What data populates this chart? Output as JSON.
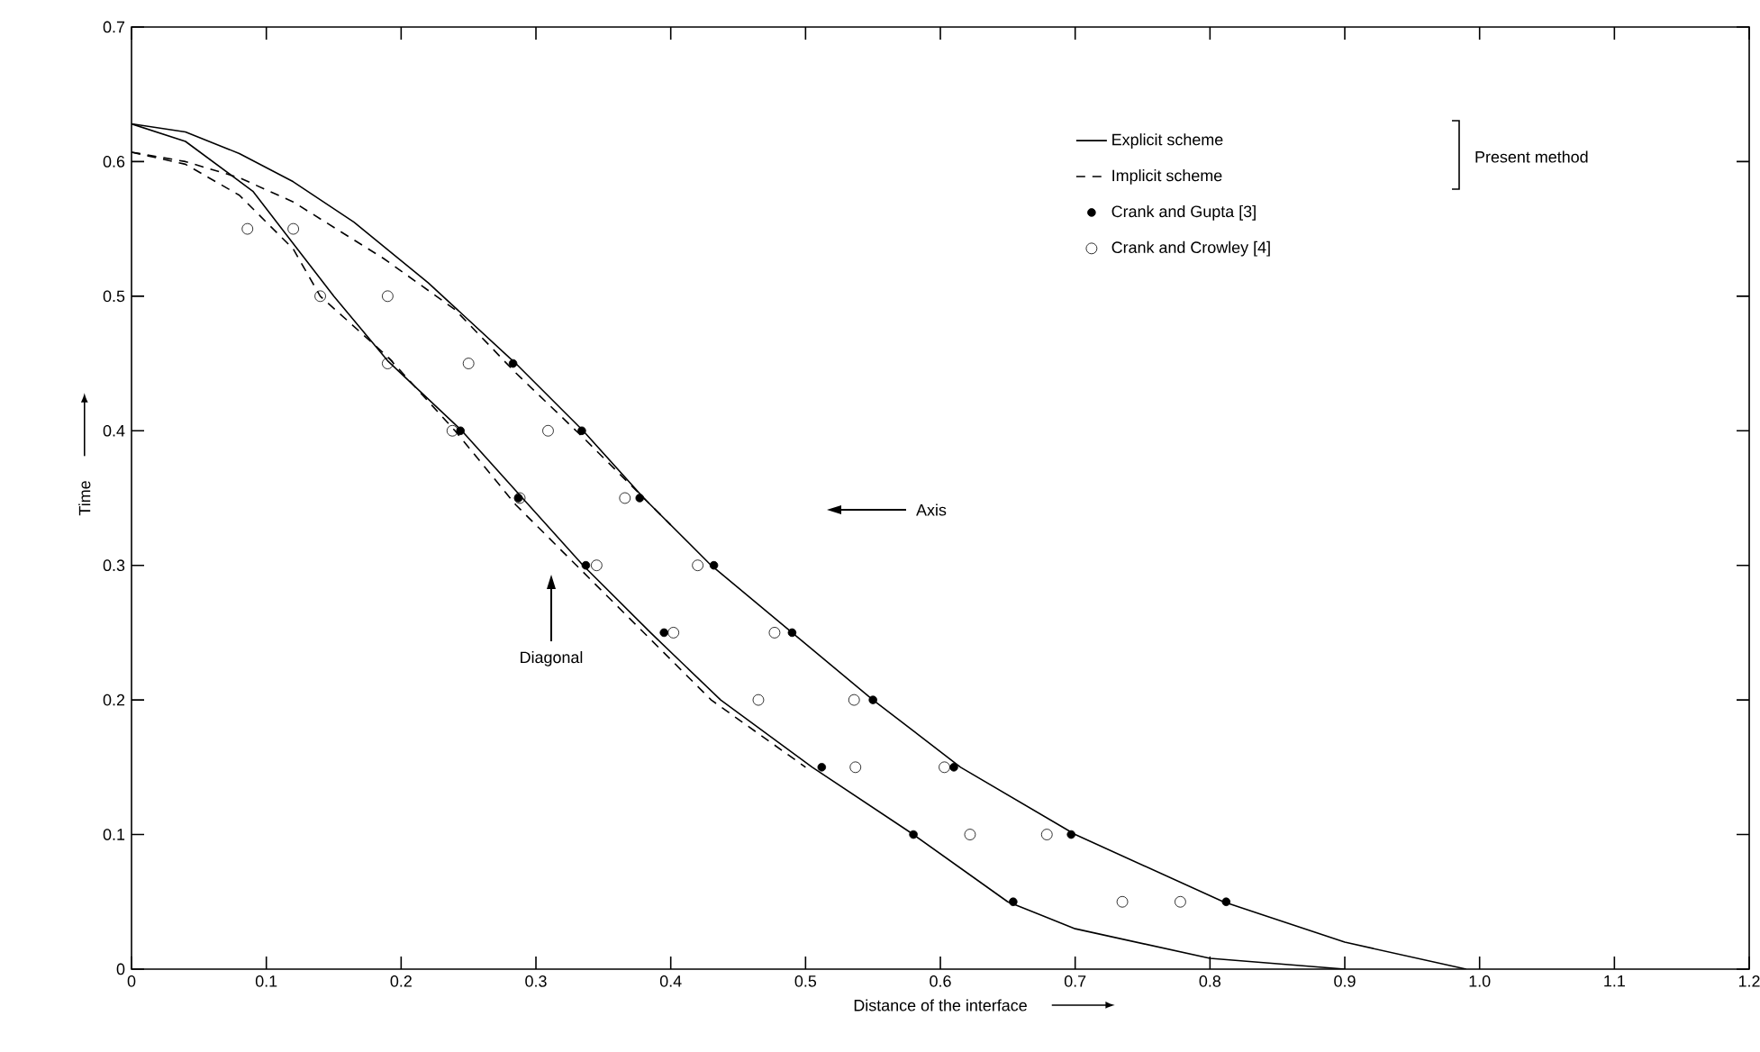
{
  "chart_data": {
    "type": "line",
    "xlabel": "Distance of the interface",
    "ylabel": "Time",
    "xlim": [
      0,
      1.2
    ],
    "ylim": [
      0,
      0.7
    ],
    "xticks": [
      0,
      0.1,
      0.2,
      0.3,
      0.4,
      0.5,
      0.6,
      0.7,
      0.8,
      0.9,
      {
        "value": 1.0,
        "label": "1.0"
      },
      1.1,
      1.2
    ],
    "yticks": [
      0,
      0.1,
      0.2,
      0.3,
      0.4,
      0.5,
      0.6,
      0.7
    ],
    "legend": "top right",
    "grid": false,
    "series": [
      {
        "name": "Explicit scheme",
        "line_style": "solid",
        "marker": "none",
        "color": "#000000",
        "x": [
          0,
          0.04,
          0.08,
          0.12,
          0.165,
          0.22,
          0.285,
          0.335,
          0.38,
          0.43,
          0.49,
          0.55,
          0.615,
          0.7,
          0.81,
          0.9,
          0.99
        ],
        "values": [
          0.628,
          0.622,
          0.606,
          0.585,
          0.555,
          0.51,
          0.45,
          0.4,
          0.35,
          0.3,
          0.25,
          0.2,
          0.15,
          0.1,
          0.05,
          0.02,
          0
        ]
      },
      {
        "line_style": "solid",
        "marker": "none",
        "color": "#000000",
        "x": [
          0,
          0.04,
          0.09,
          0.15,
          0.19,
          0.245,
          0.29,
          0.335,
          0.385,
          0.437,
          0.505,
          0.58,
          0.65,
          0.7,
          0.8,
          0.9
        ],
        "values": [
          0.628,
          0.615,
          0.578,
          0.5,
          0.452,
          0.4,
          0.35,
          0.3,
          0.25,
          0.2,
          0.15,
          0.1,
          0.05,
          0.03,
          0.008,
          0
        ]
      },
      {
        "name": "Implicit scheme",
        "line_style": "dashed",
        "marker": "none",
        "color": "#000000",
        "x": [
          0,
          0.04,
          0.08,
          0.12,
          0.187,
          0.24,
          0.285,
          0.335,
          0.37,
          0.4
        ],
        "values": [
          0.607,
          0.6,
          0.588,
          0.57,
          0.528,
          0.49,
          0.443,
          0.395,
          0.36,
          0.33
        ]
      },
      {
        "line_style": "dashed",
        "marker": "none",
        "color": "#000000",
        "x": [
          0,
          0.04,
          0.08,
          0.12,
          0.14,
          0.19,
          0.24,
          0.285,
          0.335,
          0.385,
          0.43,
          0.5
        ],
        "values": [
          0.607,
          0.598,
          0.575,
          0.535,
          0.5,
          0.455,
          0.4,
          0.345,
          0.295,
          0.245,
          0.2,
          0.15
        ]
      },
      {
        "name": "Crank and Gupta [3]",
        "type": "scatter",
        "marker": "circle",
        "color": "#000000",
        "x": [
          0.283,
          0.334,
          0.377,
          0.432,
          0.49,
          0.55,
          0.61,
          0.697,
          0.812,
          0.244,
          0.287,
          0.337,
          0.395,
          0.512,
          0.58,
          0.654
        ],
        "values": [
          0.45,
          0.4,
          0.35,
          0.3,
          0.25,
          0.2,
          0.15,
          0.1,
          0.05,
          0.4,
          0.35,
          0.3,
          0.25,
          0.15,
          0.1,
          0.05
        ]
      },
      {
        "name": "Crank and Crowley [4]",
        "type": "scatter",
        "marker": "circle-open",
        "color": "#000000",
        "x": [
          0.086,
          0.12,
          0.14,
          0.19,
          0.19,
          0.25,
          0.238,
          0.309,
          0.366,
          0.288,
          0.345,
          0.42,
          0.402,
          0.477,
          0.465,
          0.536,
          0.537,
          0.603,
          0.622,
          0.679,
          0.735,
          0.778
        ],
        "values": [
          0.55,
          0.55,
          0.5,
          0.5,
          0.45,
          0.45,
          0.4,
          0.4,
          0.35,
          0.35,
          0.3,
          0.3,
          0.25,
          0.25,
          0.2,
          0.2,
          0.15,
          0.15,
          0.1,
          0.1,
          0.05,
          0.05
        ]
      }
    ],
    "annotations": [
      "Axis",
      "Diagonal",
      "Present method"
    ]
  }
}
